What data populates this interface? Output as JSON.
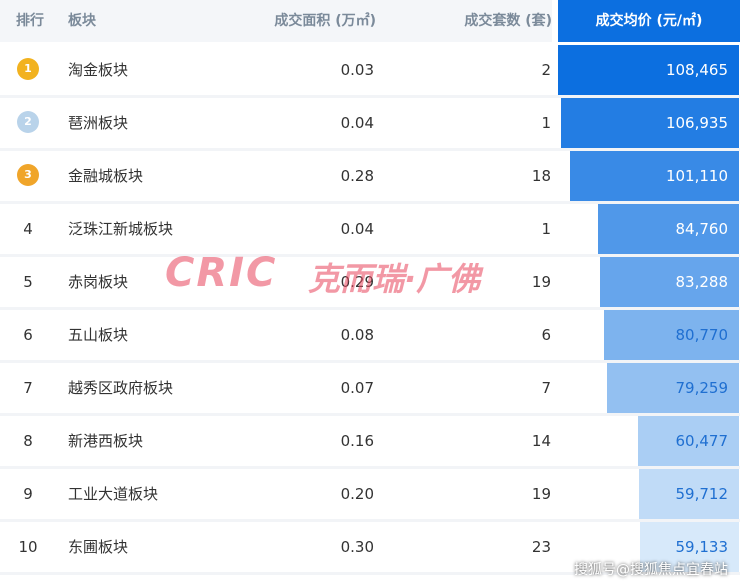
{
  "header": {
    "rank": "排行",
    "name": "板块",
    "area": "成交面积 (万㎡)",
    "count": "成交套数 (套)",
    "price": "成交均价 (元/㎡)"
  },
  "rows": [
    {
      "rank": "1",
      "name": "淘金板块",
      "area": "0.03",
      "count": "2",
      "price": {
        "value": 108465,
        "label": "108,465"
      }
    },
    {
      "rank": "2",
      "name": "琶洲板块",
      "area": "0.04",
      "count": "1",
      "price": {
        "value": 106935,
        "label": "106,935"
      }
    },
    {
      "rank": "3",
      "name": "金融城板块",
      "area": "0.28",
      "count": "18",
      "price": {
        "value": 101110,
        "label": "101,110"
      }
    },
    {
      "rank": "4",
      "name": "泛珠江新城板块",
      "area": "0.04",
      "count": "1",
      "price": {
        "value": 84760,
        "label": "84,760"
      }
    },
    {
      "rank": "5",
      "name": "赤岗板块",
      "area": "0.29",
      "count": "19",
      "price": {
        "value": 83288,
        "label": "83,288"
      }
    },
    {
      "rank": "6",
      "name": "五山板块",
      "area": "0.08",
      "count": "6",
      "price": {
        "value": 80770,
        "label": "80,770"
      }
    },
    {
      "rank": "7",
      "name": "越秀区政府板块",
      "area": "0.07",
      "count": "7",
      "price": {
        "value": 79259,
        "label": "79,259"
      }
    },
    {
      "rank": "8",
      "name": "新港西板块",
      "area": "0.16",
      "count": "14",
      "price": {
        "value": 60477,
        "label": "60,477"
      }
    },
    {
      "rank": "9",
      "name": "工业大道板块",
      "area": "0.20",
      "count": "19",
      "price": {
        "value": 59712,
        "label": "59,712"
      }
    },
    {
      "rank": "10",
      "name": "东圃板块",
      "area": "0.30",
      "count": "23",
      "price": {
        "value": 59133,
        "label": "59,133"
      }
    }
  ],
  "watermark": {
    "logo": "CRIC",
    "brand": "克而瑞·广佛",
    "source": "搜狐号@搜狐焦点宜春站"
  }
}
